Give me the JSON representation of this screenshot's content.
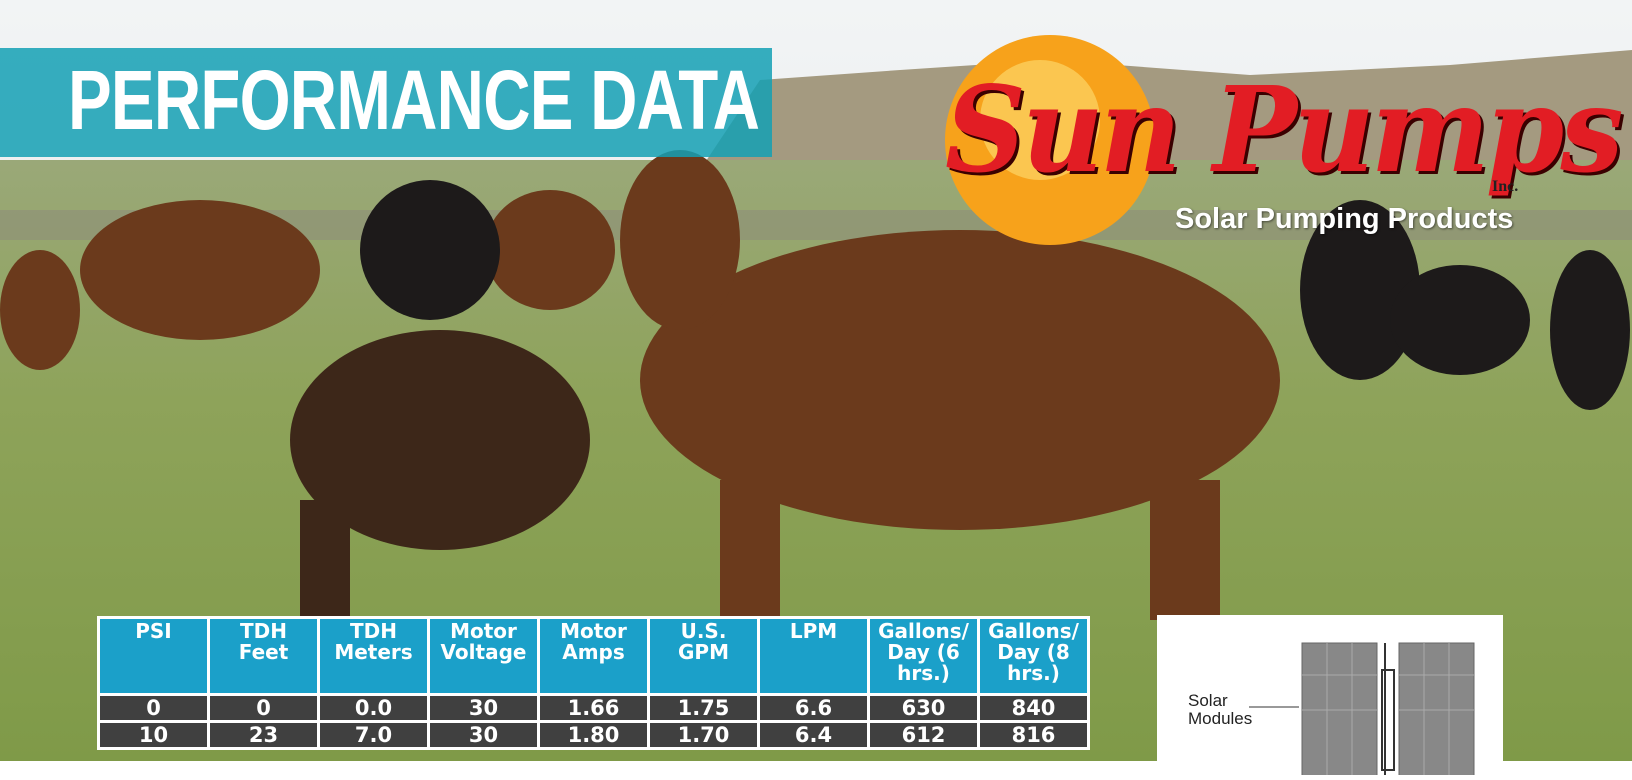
{
  "header": {
    "title": "PERFORMANCE DATA"
  },
  "logo": {
    "brand": "Sun Pumps",
    "suffix": "Inc.",
    "tagline": "Solar Pumping Products"
  },
  "table": {
    "columns": [
      "PSI",
      "TDH Feet",
      "TDH Meters",
      "Motor Voltage",
      "Motor Amps",
      "U.S. GPM",
      "LPM",
      "Gallons/ Day (6 hrs.)",
      "Gallons/ Day (8 hrs.)"
    ],
    "rows": [
      [
        "0",
        "0",
        "0.0",
        "30",
        "1.66",
        "1.75",
        "6.6",
        "630",
        "840"
      ],
      [
        "10",
        "23",
        "7.0",
        "30",
        "1.80",
        "1.70",
        "6.4",
        "612",
        "816"
      ]
    ]
  },
  "diagram": {
    "label": "Solar Modules"
  }
}
